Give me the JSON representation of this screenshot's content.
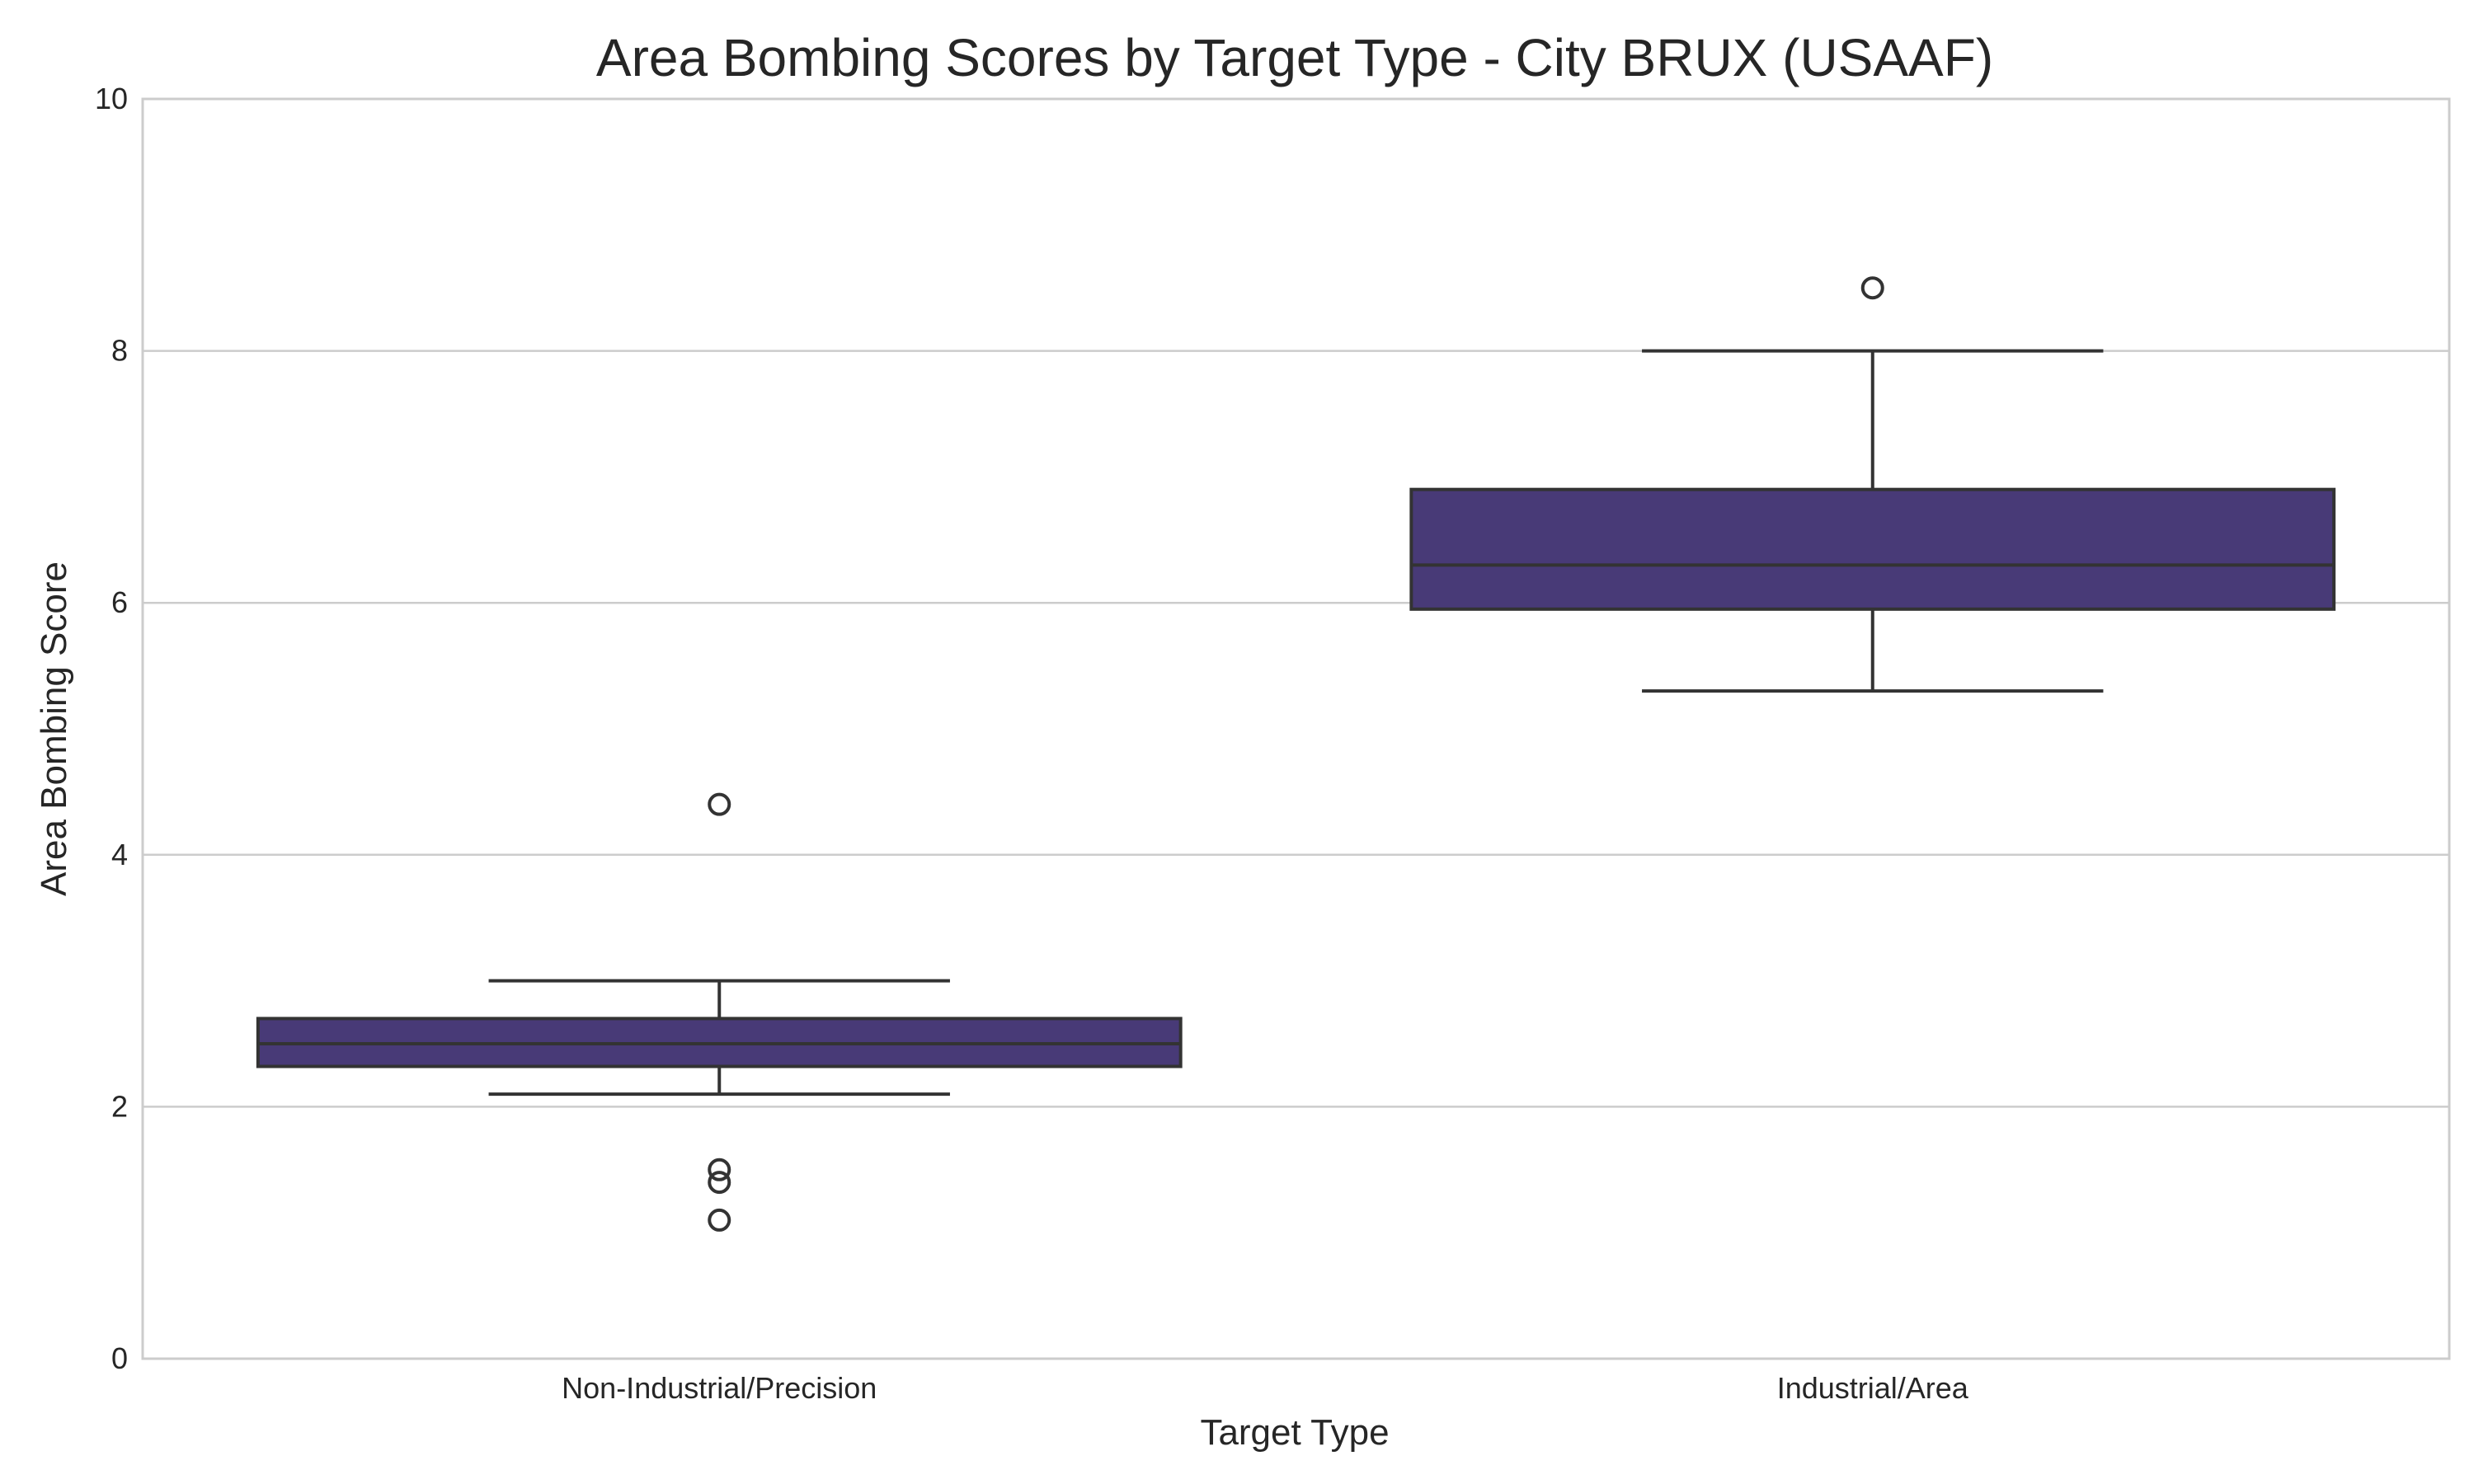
{
  "chart_data": {
    "type": "box",
    "title": "Area Bombing Scores by Target Type - City BRUX (USAAF)",
    "xlabel": "Target Type",
    "ylabel": "Area Bombing Score",
    "ylim": [
      0,
      10
    ],
    "yticks": [
      0,
      2,
      4,
      6,
      8,
      10
    ],
    "grid": true,
    "box_color": "#483a77",
    "categories": [
      "Non-Industrial/Precision",
      "Industrial/Area"
    ],
    "boxes": [
      {
        "category": "Non-Industrial/Precision",
        "whisker_low": 2.1,
        "q1": 2.32,
        "median": 2.5,
        "q3": 2.7,
        "whisker_high": 3.0,
        "outliers": [
          4.4,
          1.5,
          1.4,
          1.1
        ]
      },
      {
        "category": "Industrial/Area",
        "whisker_low": 5.3,
        "q1": 5.95,
        "median": 6.3,
        "q3": 6.9,
        "whisker_high": 8.0,
        "outliers": [
          8.5
        ]
      }
    ]
  }
}
